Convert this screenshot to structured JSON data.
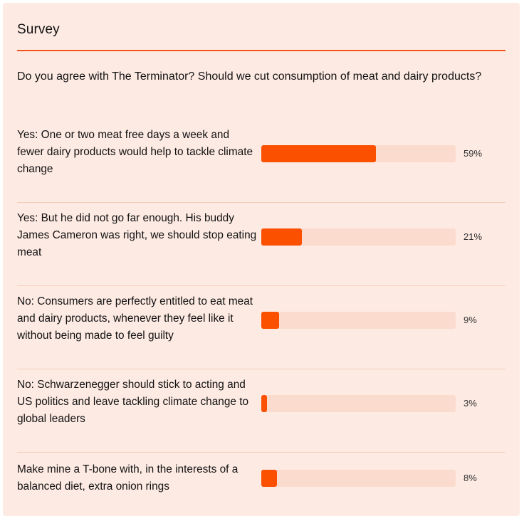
{
  "survey": {
    "title": "Survey",
    "question": "Do you agree with The Terminator? Should we cut consumption of meat and dairy products?",
    "accent_color": "#fb5000",
    "track_color": "#fcdbcf",
    "options": [
      {
        "label": "Yes: One or two meat free days a week and fewer dairy products would help to tackle climate change",
        "percent": 59,
        "percent_label": "59%"
      },
      {
        "label": "Yes: But he did not go far enough. His buddy James Cameron was right, we should stop eating meat",
        "percent": 21,
        "percent_label": "21%"
      },
      {
        "label": "No: Consumers are perfectly entitled to eat meat and dairy products, whenever they feel like it without being made to feel guilty",
        "percent": 9,
        "percent_label": "9%"
      },
      {
        "label": "No: Schwarzenegger should stick to acting and US politics and leave tackling climate change to global leaders",
        "percent": 3,
        "percent_label": "3%"
      },
      {
        "label": "Make mine a T-bone with, in the interests of a balanced diet, extra onion rings",
        "percent": 8,
        "percent_label": "8%"
      }
    ]
  }
}
